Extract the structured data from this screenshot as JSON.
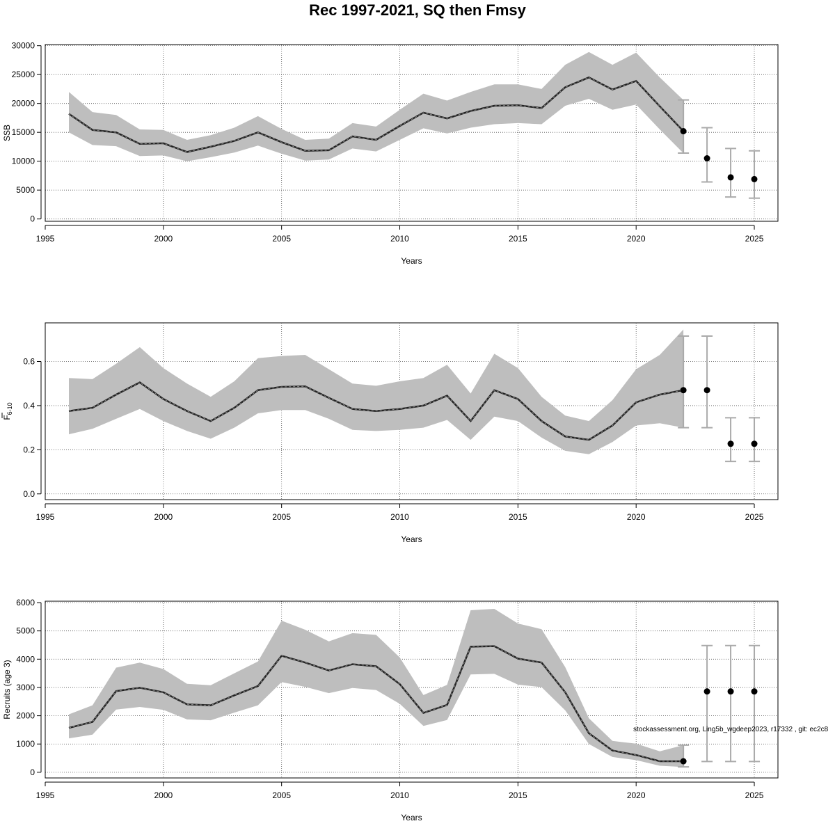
{
  "title": "Rec 1997-2021, SQ then Fmsy",
  "watermark": "stockassessment.org, Ling5b_wgdeep2023, r17332 , git: ec2c8",
  "colors": {
    "band": "#bebebe",
    "line": "#222222",
    "errorbar": "#aaaaaa",
    "point": "#000000"
  },
  "chart_data": [
    {
      "type": "line",
      "name": "ssb",
      "ylabel": "SSB",
      "ylabel_sub": "",
      "xlabel": "Years",
      "xlim": [
        1995,
        2026
      ],
      "ylim": [
        -400,
        30200
      ],
      "xticks": [
        1995,
        2000,
        2005,
        2010,
        2015,
        2020,
        2025
      ],
      "yticks": [
        0,
        5000,
        10000,
        15000,
        20000,
        25000,
        30000
      ],
      "grid": true,
      "x": [
        1996,
        1997,
        1998,
        1999,
        2000,
        2001,
        2002,
        2003,
        2004,
        2005,
        2006,
        2007,
        2008,
        2009,
        2010,
        2011,
        2012,
        2013,
        2014,
        2015,
        2016,
        2017,
        2018,
        2019,
        2020,
        2021,
        2022
      ],
      "estimate": [
        18200,
        15400,
        15000,
        13000,
        13100,
        11600,
        12500,
        13500,
        15000,
        13300,
        11800,
        11900,
        14300,
        13700,
        16100,
        18400,
        17400,
        18700,
        19600,
        19700,
        19200,
        22800,
        24500,
        22400,
        23900,
        19500,
        15200
      ],
      "low": [
        15000,
        12800,
        12600,
        10900,
        11000,
        10000,
        10700,
        11500,
        12700,
        11300,
        10100,
        10300,
        12200,
        11700,
        13700,
        15700,
        14800,
        15800,
        16400,
        16600,
        16400,
        19600,
        20800,
        18900,
        19800,
        15500,
        11400
      ],
      "high": [
        22000,
        18500,
        18000,
        15500,
        15400,
        13700,
        14500,
        15800,
        17800,
        15600,
        13700,
        13900,
        16600,
        16000,
        18900,
        21700,
        20500,
        22000,
        23300,
        23300,
        22500,
        26700,
        28900,
        26700,
        28800,
        24500,
        20600
      ],
      "forecast": [
        {
          "x": 2022,
          "y": 15200,
          "low": 11400,
          "high": 20600
        },
        {
          "x": 2023,
          "y": 10500,
          "low": 6400,
          "high": 15800
        },
        {
          "x": 2024,
          "y": 7200,
          "low": 3800,
          "high": 12200
        },
        {
          "x": 2025,
          "y": 6900,
          "low": 3600,
          "high": 11800
        }
      ]
    },
    {
      "type": "line",
      "name": "fbar",
      "ylabel": "F",
      "ylabel_sub": "6-10",
      "xlabel": "Years",
      "xlim": [
        1995,
        2026
      ],
      "ylim": [
        -0.026,
        0.775
      ],
      "xticks": [
        1995,
        2000,
        2005,
        2010,
        2015,
        2020,
        2025
      ],
      "yticks": [
        0.0,
        0.2,
        0.4,
        0.6
      ],
      "grid": true,
      "x": [
        1996,
        1997,
        1998,
        1999,
        2000,
        2001,
        2002,
        2003,
        2004,
        2005,
        2006,
        2007,
        2008,
        2009,
        2010,
        2011,
        2012,
        2013,
        2014,
        2015,
        2016,
        2017,
        2018,
        2019,
        2020,
        2021,
        2022
      ],
      "estimate": [
        0.375,
        0.39,
        0.45,
        0.505,
        0.43,
        0.375,
        0.33,
        0.39,
        0.47,
        0.485,
        0.487,
        0.435,
        0.385,
        0.375,
        0.385,
        0.4,
        0.445,
        0.33,
        0.47,
        0.43,
        0.33,
        0.26,
        0.245,
        0.31,
        0.415,
        0.45,
        0.47
      ],
      "low": [
        0.27,
        0.295,
        0.34,
        0.385,
        0.33,
        0.285,
        0.25,
        0.3,
        0.365,
        0.38,
        0.38,
        0.34,
        0.29,
        0.285,
        0.29,
        0.3,
        0.335,
        0.245,
        0.35,
        0.33,
        0.255,
        0.195,
        0.18,
        0.235,
        0.31,
        0.32,
        0.3
      ],
      "high": [
        0.525,
        0.52,
        0.59,
        0.665,
        0.57,
        0.5,
        0.44,
        0.51,
        0.615,
        0.625,
        0.63,
        0.565,
        0.5,
        0.49,
        0.51,
        0.525,
        0.585,
        0.455,
        0.635,
        0.57,
        0.44,
        0.355,
        0.33,
        0.425,
        0.565,
        0.63,
        0.745
      ],
      "forecast": [
        {
          "x": 2022,
          "y": 0.47,
          "low": 0.3,
          "high": 0.715
        },
        {
          "x": 2023,
          "y": 0.47,
          "low": 0.3,
          "high": 0.715
        },
        {
          "x": 2024,
          "y": 0.227,
          "low": 0.147,
          "high": 0.345
        },
        {
          "x": 2025,
          "y": 0.227,
          "low": 0.147,
          "high": 0.345
        }
      ]
    },
    {
      "type": "line",
      "name": "recruits",
      "ylabel": "Recruits (age 3)",
      "ylabel_sub": "",
      "xlabel": "Years",
      "xlim": [
        1995,
        2026
      ],
      "ylim": [
        -200,
        6050
      ],
      "xticks": [
        1995,
        2000,
        2005,
        2010,
        2015,
        2020,
        2025
      ],
      "yticks": [
        0,
        1000,
        2000,
        3000,
        4000,
        5000,
        6000
      ],
      "grid": true,
      "x": [
        1996,
        1997,
        1998,
        1999,
        2000,
        2001,
        2002,
        2003,
        2004,
        2005,
        2006,
        2007,
        2008,
        2009,
        2010,
        2011,
        2012,
        2013,
        2014,
        2015,
        2016,
        2017,
        2018,
        2019,
        2020,
        2021,
        2022
      ],
      "estimate": [
        1570,
        1780,
        2870,
        2990,
        2830,
        2400,
        2370,
        2720,
        3050,
        4120,
        3880,
        3600,
        3820,
        3750,
        3120,
        2100,
        2380,
        4440,
        4460,
        4020,
        3880,
        2830,
        1380,
        770,
        610,
        390,
        390
      ],
      "low": [
        1200,
        1330,
        2220,
        2310,
        2210,
        1870,
        1840,
        2110,
        2370,
        3190,
        3020,
        2800,
        2980,
        2910,
        2420,
        1640,
        1850,
        3460,
        3480,
        3100,
        3010,
        2190,
        1000,
        540,
        430,
        230,
        190
      ],
      "high": [
        2050,
        2370,
        3700,
        3880,
        3650,
        3130,
        3080,
        3500,
        3920,
        5360,
        5040,
        4630,
        4920,
        4860,
        4060,
        2730,
        3090,
        5730,
        5780,
        5260,
        5060,
        3720,
        1910,
        1110,
        1010,
        740,
        960
      ],
      "forecast": [
        {
          "x": 2022,
          "y": 390,
          "low": 190,
          "high": 960
        },
        {
          "x": 2023,
          "y": 2860,
          "low": 380,
          "high": 4480
        },
        {
          "x": 2024,
          "y": 2860,
          "low": 380,
          "high": 4480
        },
        {
          "x": 2025,
          "y": 2860,
          "low": 380,
          "high": 4480
        }
      ]
    }
  ]
}
